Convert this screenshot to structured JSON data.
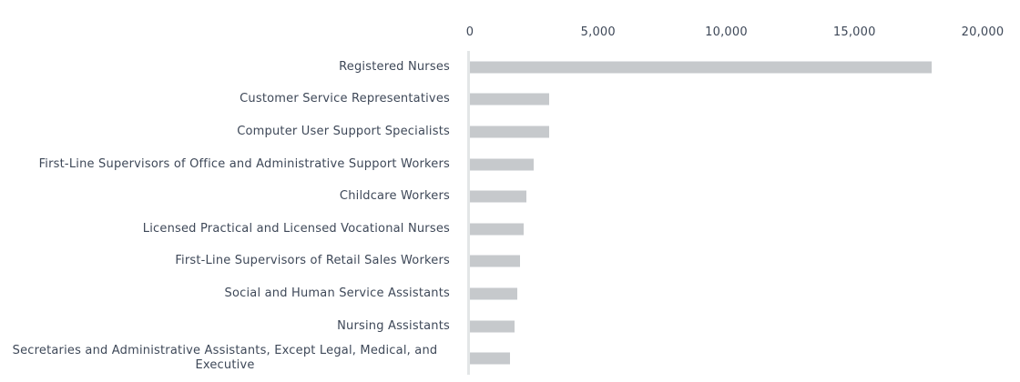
{
  "chart_data": {
    "type": "bar",
    "orientation": "horizontal",
    "title": "",
    "categories": [
      "Registered Nurses",
      "Customer Service Representatives",
      "Computer User Support Specialists",
      "First-Line Supervisors of Office and Administrative Support Workers",
      "Childcare Workers",
      "Licensed Practical and Licensed Vocational Nurses",
      "First-Line Supervisors of Retail Sales Workers",
      "Social and Human Service Assistants",
      "Nursing Assistants",
      "Secretaries and Administrative Assistants, Except Legal, Medical, and Executive"
    ],
    "values": [
      18000,
      3100,
      3100,
      2500,
      2200,
      2100,
      1950,
      1850,
      1750,
      1550
    ],
    "xlim": [
      0,
      20000
    ],
    "x_ticks": [
      0,
      5000,
      10000,
      15000,
      20000
    ],
    "x_tick_labels": [
      "0",
      "5,000",
      "10,000",
      "15,000",
      "20,000"
    ],
    "x_axis_position": "top",
    "grid": false,
    "legend": false,
    "colors": {
      "bar": "#c6c9cc",
      "axis_line": "#e3e6e7",
      "text": "#3e4858",
      "background": "#ffffff"
    }
  }
}
